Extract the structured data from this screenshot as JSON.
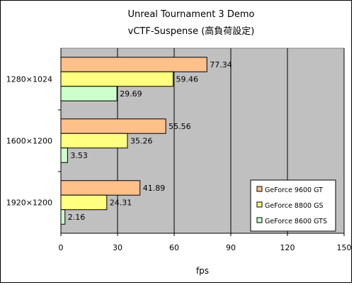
{
  "chart_data": {
    "type": "bar",
    "orientation": "horizontal",
    "title": "Unreal Tournament 3 Demo",
    "subtitle": "vCTF-Suspense (高負荷設定)",
    "xlabel": "fps",
    "ylabel": "",
    "categories": [
      "1280×1024",
      "1600×1200",
      "1920×1200"
    ],
    "series": [
      {
        "name": "GeForce 9600 GT",
        "values": [
          77.34,
          55.56,
          41.89
        ],
        "color": "#FFC08A"
      },
      {
        "name": "GeForce 8800 GS",
        "values": [
          59.46,
          35.26,
          24.31
        ],
        "color": "#FFFF80"
      },
      {
        "name": "GeForce 8600 GTS",
        "values": [
          29.69,
          3.53,
          2.16
        ],
        "color": "#CCFFCC"
      }
    ],
    "xlim": [
      0,
      150
    ],
    "xticks": [
      0,
      30,
      60,
      90,
      120,
      150
    ],
    "grid": true,
    "plot_background": "#C0C0C0",
    "legend_position": "right"
  }
}
